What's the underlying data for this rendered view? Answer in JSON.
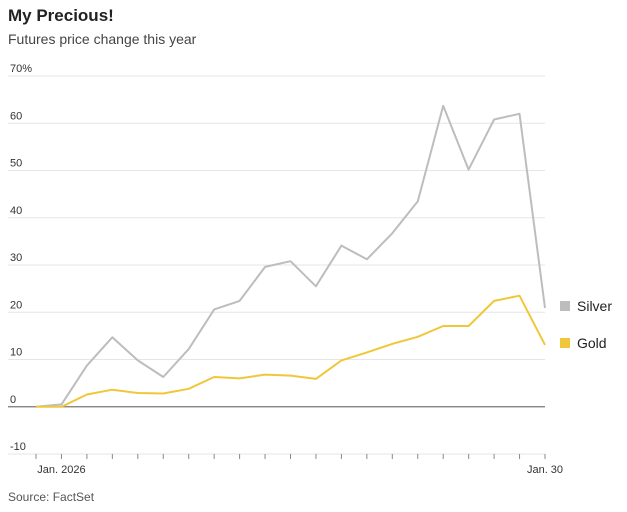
{
  "title": "My Precious!",
  "subtitle": "Futures price change this year",
  "source": "Source: FactSet",
  "chart_data": {
    "type": "line",
    "title": "My Precious!",
    "subtitle": "Futures price change this year",
    "xlabel": "",
    "ylabel": "",
    "ylim": [
      -10,
      70
    ],
    "yticks": [
      -10,
      0,
      10,
      20,
      30,
      40,
      50,
      60,
      70
    ],
    "ytick_labels": [
      "-10",
      "0",
      "10",
      "20",
      "30",
      "40",
      "50",
      "60",
      "70%"
    ],
    "x_count": 21,
    "xtick_labels": [
      {
        "index": 1,
        "label": "Jan. 2026"
      },
      {
        "index": 20,
        "label": "Jan. 30"
      }
    ],
    "colors": {
      "Silver": "#bdbdbd",
      "Gold": "#f0c73a",
      "grid": "#e6e6e6",
      "zero": "#777777"
    },
    "series": [
      {
        "name": "Silver",
        "values": [
          0,
          0.5,
          8.7,
          14.7,
          9.8,
          6.3,
          12.2,
          20.6,
          22.4,
          29.6,
          30.8,
          25.5,
          34.1,
          31.2,
          36.7,
          43.5,
          63.7,
          50.2,
          60.8,
          62.0,
          20.9
        ]
      },
      {
        "name": "Gold",
        "values": [
          0,
          0,
          2.6,
          3.6,
          2.9,
          2.8,
          3.8,
          6.3,
          6.0,
          6.8,
          6.6,
          5.9,
          9.8,
          11.5,
          13.3,
          14.8,
          17.1,
          17.1,
          22.4,
          23.5,
          13.1
        ]
      }
    ],
    "legend": "right"
  }
}
